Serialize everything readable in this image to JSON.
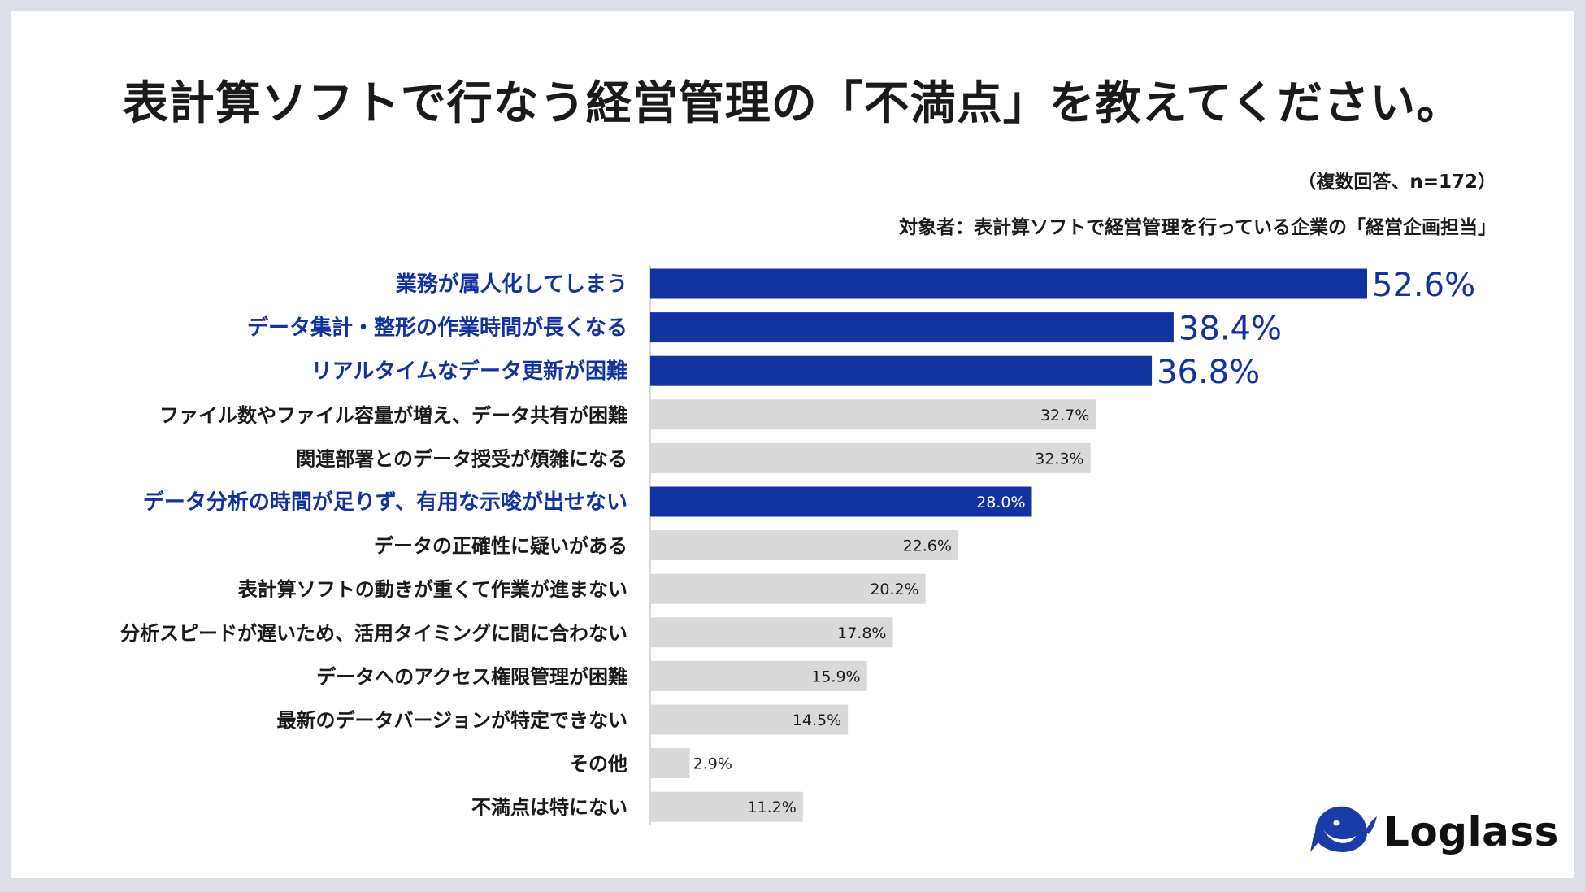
{
  "chart_data": {
    "type": "bar",
    "orientation": "horizontal",
    "title": "表計算ソフトで行なう経営管理の「不満点」を教えてください。",
    "note": "（複数回答、n=172）",
    "subject": "対象者：表計算ソフトで経営管理を行っている企業の「経営企画担当」",
    "categories": [
      "業務が属人化してしまう",
      "データ集計・整形の作業時間が長くなる",
      "リアルタイムなデータ更新が困難",
      "ファイル数やファイル容量が増え、データ共有が困難",
      "関連部署とのデータ授受が煩雑になる",
      "データ分析の時間が足りず、有用な示唆が出せない",
      "データの正確性に疑いがある",
      "表計算ソフトの動きが重くて作業が進まない",
      "分析スピードが遅いため、活用タイミングに間に合わない",
      "データへのアクセス権限管理が困難",
      "最新のデータバージョンが特定できない",
      "その他",
      "不満点は特にない"
    ],
    "values": [
      52.6,
      38.4,
      36.8,
      32.7,
      32.3,
      28.0,
      22.6,
      20.2,
      17.8,
      15.9,
      14.5,
      2.9,
      11.2
    ],
    "value_labels": [
      "52.6%",
      "38.4%",
      "36.8%",
      "32.7%",
      "32.3%",
      "28.0%",
      "22.6%",
      "20.2%",
      "17.8%",
      "15.9%",
      "14.5%",
      "2.9%",
      "11.2%"
    ],
    "highlighted": [
      true,
      true,
      true,
      false,
      false,
      true,
      false,
      false,
      false,
      false,
      false,
      false,
      false
    ],
    "large_label": [
      true,
      true,
      true,
      false,
      false,
      false,
      false,
      false,
      false,
      false,
      false,
      false,
      false
    ],
    "xlim": [
      0,
      52.6
    ],
    "colors": {
      "highlight": "#1232a0",
      "normal": "#d9d9d9",
      "axis": "#cccccc",
      "text": "#1a1a1a"
    }
  },
  "brand": {
    "name": "Loglass",
    "color": "#1a3ca8"
  }
}
